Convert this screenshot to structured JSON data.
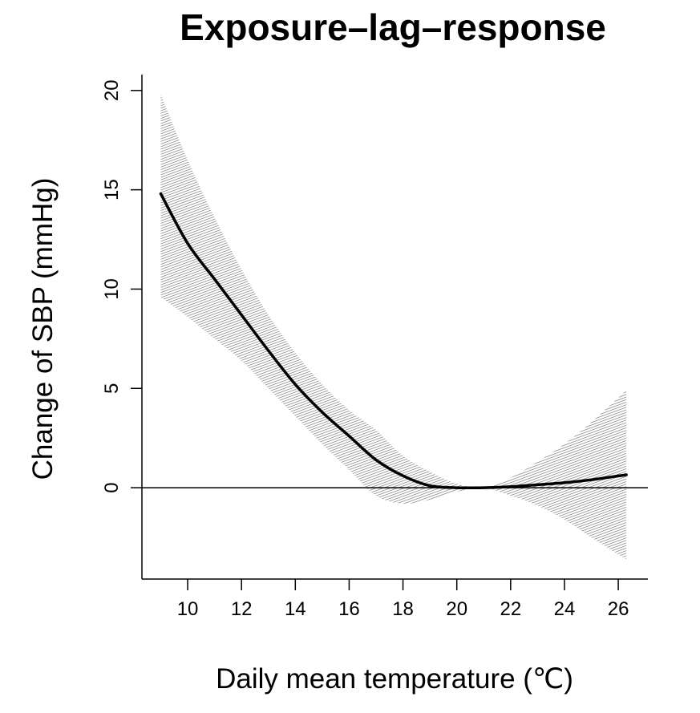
{
  "chart_data": {
    "type": "line",
    "title": "Exposure–lag–response",
    "xlabel": "Daily mean temperature (℃)",
    "ylabel": "Change of SBP (mmHg)",
    "xlim": [
      8.3,
      27.1
    ],
    "ylim": [
      -4.6,
      20.8
    ],
    "xticks": [
      10,
      12,
      14,
      16,
      18,
      20,
      22,
      24,
      26
    ],
    "yticks": [
      0,
      5,
      10,
      15,
      20
    ],
    "reference_line": 0,
    "grid": false,
    "legend": "none",
    "colors": {
      "line": "#000000",
      "band": "#777777"
    },
    "series": [
      {
        "x": [
          9,
          10,
          11,
          12,
          13,
          14,
          15,
          16,
          17,
          18,
          19,
          20,
          21,
          22,
          23,
          24,
          25,
          26.3
        ],
        "y": [
          14.8,
          12.3,
          10.5,
          8.7,
          6.9,
          5.2,
          3.8,
          2.6,
          1.4,
          0.6,
          0.1,
          0.0,
          0.0,
          0.05,
          0.15,
          0.25,
          0.4,
          0.65
        ],
        "lower": [
          9.6,
          8.6,
          7.5,
          6.4,
          5.0,
          3.6,
          2.2,
          0.9,
          -0.4,
          -0.8,
          -0.6,
          -0.2,
          0.0,
          -0.4,
          -0.9,
          -1.6,
          -2.5,
          -3.6
        ],
        "upper": [
          19.8,
          16.5,
          13.6,
          11.0,
          8.7,
          6.8,
          5.2,
          3.9,
          2.9,
          1.6,
          0.8,
          0.2,
          0.0,
          0.5,
          1.3,
          2.2,
          3.3,
          4.9
        ]
      }
    ]
  }
}
